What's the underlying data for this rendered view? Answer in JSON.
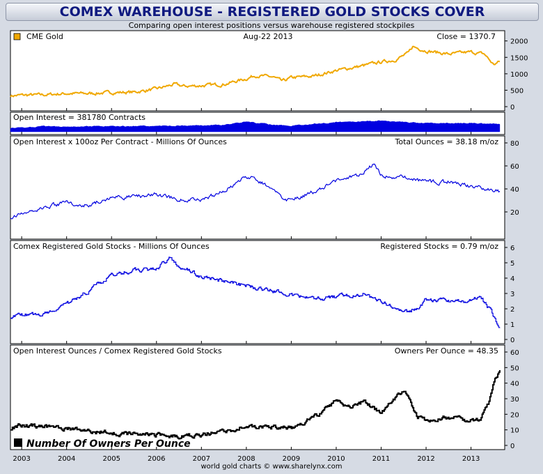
{
  "header": {
    "title": "COMEX WAREHOUSE - REGISTERED GOLD STOCKS COVER",
    "subtitle": "Comparing open interest positions versus warehouse registered stockpiles"
  },
  "footer": {
    "credit": "world gold charts © www.sharelynx.com"
  },
  "colors": {
    "gold": "#f0a800",
    "blue": "#0000e0",
    "black": "#000000"
  },
  "chart_data": [
    {
      "type": "line",
      "title": "CME Gold",
      "date": "Aug-22  2013",
      "last_value_label": "Close = 1370.7",
      "x": [
        2002.75,
        2003.0,
        2003.5,
        2004.0,
        2004.5,
        2005.0,
        2005.5,
        2006.0,
        2006.4,
        2006.6,
        2007.0,
        2007.5,
        2008.0,
        2008.2,
        2008.6,
        2008.8,
        2009.0,
        2009.5,
        2010.0,
        2010.5,
        2011.0,
        2011.3,
        2011.6,
        2011.7,
        2012.0,
        2012.5,
        2013.0,
        2013.3,
        2013.5,
        2013.64
      ],
      "values": [
        330,
        350,
        360,
        400,
        400,
        430,
        440,
        540,
        680,
        620,
        640,
        680,
        850,
        950,
        900,
        770,
        880,
        930,
        1100,
        1220,
        1360,
        1420,
        1620,
        1830,
        1700,
        1600,
        1660,
        1600,
        1280,
        1370
      ],
      "ylim": [
        0,
        2100
      ],
      "yticks": [
        0,
        500,
        1000,
        1500,
        2000
      ],
      "color": "#f0a800"
    },
    {
      "type": "area",
      "title": "Open Interest = 381780 Contracts",
      "x": [
        2002.75,
        2003.5,
        2004.5,
        2005.5,
        2006.5,
        2007.5,
        2008.0,
        2008.5,
        2009.0,
        2010.0,
        2011.0,
        2012.0,
        2013.0,
        2013.64
      ],
      "values": [
        180000,
        270000,
        260000,
        280000,
        300000,
        340000,
        500000,
        380000,
        300000,
        480000,
        560000,
        430000,
        440000,
        381780
      ],
      "color": "#0000e0"
    },
    {
      "type": "line",
      "title": "Open Interest x 100oz Per Contract - Millions Of Ounces",
      "last_value_label": "Total Ounces = 38.18 m/oz",
      "x": [
        2002.75,
        2003.0,
        2003.5,
        2004.0,
        2004.5,
        2005.0,
        2005.5,
        2006.0,
        2006.5,
        2007.0,
        2007.5,
        2007.9,
        2008.2,
        2008.5,
        2008.9,
        2009.5,
        2010.0,
        2010.5,
        2010.85,
        2011.0,
        2011.5,
        2012.0,
        2012.5,
        2013.0,
        2013.3,
        2013.64
      ],
      "values": [
        16,
        18,
        24,
        28,
        26,
        33,
        33,
        35,
        31,
        30,
        38,
        49,
        50,
        41,
        30,
        37,
        47,
        52,
        62,
        52,
        50,
        46,
        46,
        42,
        41,
        38
      ],
      "ylim": [
        0,
        80
      ],
      "yticks": [
        20,
        40,
        60,
        80
      ],
      "color": "#0000e0"
    },
    {
      "type": "line",
      "title": "Comex Registered Gold Stocks - Millions Of Ounces",
      "last_value_label": "Registered Stocks = 0.79 m/oz",
      "x": [
        2002.75,
        2003.5,
        2004.0,
        2004.5,
        2005.0,
        2005.5,
        2006.0,
        2006.3,
        2006.5,
        2007.0,
        2007.5,
        2008.0,
        2008.5,
        2009.0,
        2009.5,
        2010.0,
        2010.3,
        2010.6,
        2011.0,
        2011.3,
        2011.5,
        2011.8,
        2012.0,
        2012.5,
        2013.0,
        2013.2,
        2013.4,
        2013.64
      ],
      "values": [
        1.5,
        1.7,
        2.3,
        3.2,
        4.2,
        4.5,
        4.6,
        5.3,
        4.8,
        4.1,
        3.8,
        3.5,
        3.2,
        2.9,
        2.6,
        2.8,
        2.9,
        3.0,
        2.5,
        2.0,
        1.7,
        2.1,
        2.6,
        2.5,
        2.5,
        2.8,
        2.0,
        0.79
      ],
      "ylim": [
        0,
        6
      ],
      "yticks": [
        0,
        1,
        2,
        3,
        4,
        5,
        6
      ],
      "color": "#0000e0"
    },
    {
      "type": "line",
      "title": "Open Interest Ounces / Comex Registered Gold Stocks",
      "last_value_label": "Owners Per Ounce = 48.35",
      "legend_label": "Number Of Owners Per Ounce",
      "x": [
        2002.75,
        2003.0,
        2003.5,
        2004.0,
        2004.5,
        2005.0,
        2005.5,
        2006.0,
        2006.5,
        2007.0,
        2007.5,
        2008.0,
        2008.5,
        2009.0,
        2009.3,
        2009.6,
        2010.0,
        2010.3,
        2010.6,
        2011.0,
        2011.3,
        2011.5,
        2011.8,
        2012.0,
        2012.5,
        2013.0,
        2013.2,
        2013.4,
        2013.5,
        2013.64
      ],
      "values": [
        11,
        13,
        12,
        11,
        9,
        8,
        7,
        7,
        6,
        7,
        9,
        12,
        12,
        11,
        15,
        20,
        29,
        25,
        28,
        21,
        30,
        36,
        18,
        16,
        18,
        16,
        17,
        28,
        42,
        48.35
      ],
      "ylim": [
        0,
        60
      ],
      "yticks": [
        0,
        10,
        20,
        30,
        40,
        50,
        60
      ],
      "color": "#000000"
    }
  ],
  "x_axis": {
    "ticks": [
      "2003",
      "2004",
      "2005",
      "2006",
      "2007",
      "2008",
      "2009",
      "2010",
      "2011",
      "2012",
      "2013"
    ],
    "tick_values": [
      2003,
      2004,
      2005,
      2006,
      2007,
      2008,
      2009,
      2010,
      2011,
      2012,
      2013
    ],
    "xlim": [
      2002.75,
      2013.75
    ]
  }
}
